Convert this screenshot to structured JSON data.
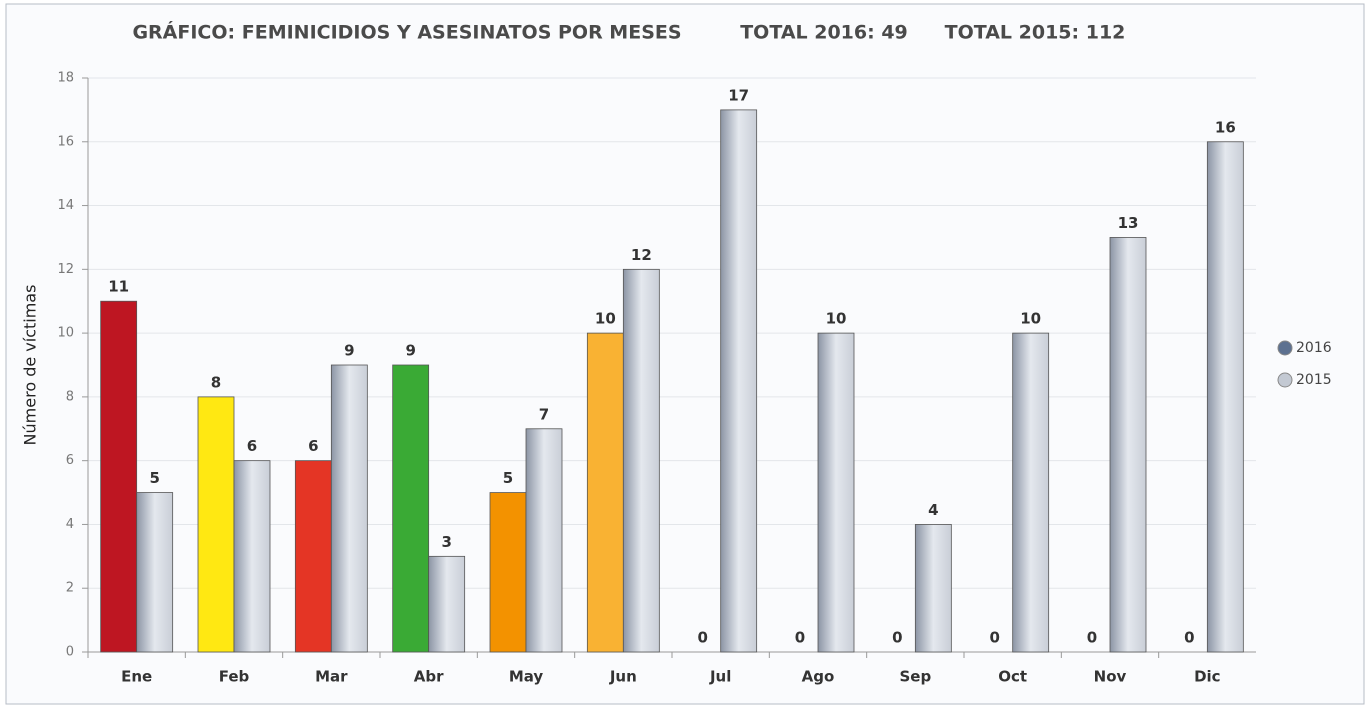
{
  "chart_data": {
    "type": "bar",
    "title": "GRÁFICO: FEMINICIDIOS Y ASESINATOS POR MESES",
    "annotations": [
      "TOTAL 2016: 49",
      "TOTAL 2015: 112"
    ],
    "y_label": "Número de víctimas",
    "categories": [
      "Ene",
      "Feb",
      "Mar",
      "Abr",
      "May",
      "Jun",
      "Jul",
      "Ago",
      "Sep",
      "Oct",
      "Nov",
      "Dic"
    ],
    "series": [
      {
        "name": "2016",
        "color": "#5d7190",
        "values": [
          11,
          8,
          6,
          9,
          5,
          10,
          0,
          0,
          0,
          0,
          0,
          0
        ],
        "colors": [
          "#be1622",
          "#ffe812",
          "#e43525",
          "#3aaa35",
          "#f39200",
          "#f9b233",
          "#5d7190",
          "#5d7190",
          "#5d7190",
          "#5d7190",
          "#5d7190",
          "#5d7190"
        ]
      },
      {
        "name": "2015",
        "color": "#c3c9d3",
        "values": [
          5,
          6,
          9,
          3,
          7,
          12,
          17,
          10,
          4,
          10,
          13,
          16
        ]
      }
    ],
    "ylim": [
      0,
      18
    ],
    "yticks": [
      0,
      2,
      4,
      6,
      8,
      10,
      12,
      14,
      16,
      18
    ],
    "grid": true,
    "legend": "right"
  }
}
